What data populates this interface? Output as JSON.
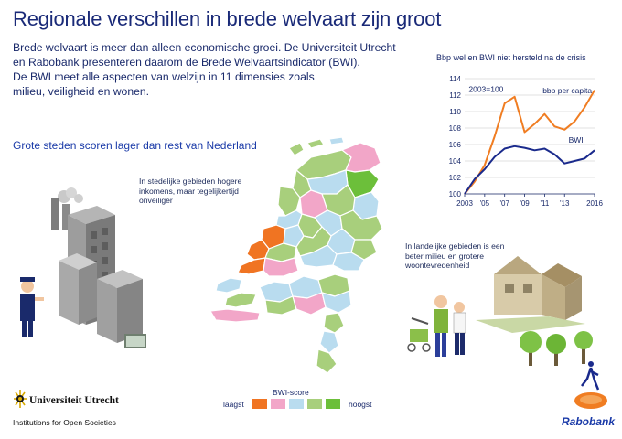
{
  "header": {
    "title": "Regionale verschillen in brede welvaart zijn groot"
  },
  "intro": {
    "lines": [
      "Brede welvaart is meer dan alleen economische groei. De Universiteit Utrecht",
      "en Rabobank presenteren daarom de Brede Welvaartsindicator (BWI).",
      "De BWI meet alle aspecten van welzijn in 11 dimensies zoals",
      "milieu, veiligheid en wonen."
    ]
  },
  "subtitle": "Grote steden scoren lager dan rest van Nederland",
  "notes": {
    "urban": "In stedelijke gebieden hogere inkomens, maar tegelijkertijd onveiliger",
    "rural": "In landelijke gebieden is een beter milieu en grotere woontevredenheid"
  },
  "legend": {
    "title": "BWI-score",
    "low_label": "laagst",
    "high_label": "hoogst",
    "colors": [
      "#f07422",
      "#f2a6c8",
      "#b9dcef",
      "#a8cf7c",
      "#6cbf3a"
    ]
  },
  "chart_data": {
    "type": "line",
    "title": "Bbp wel en BWI niet hersteld na de crisis",
    "annotation": "2003=100",
    "x_tick_labels": [
      "2003",
      "'05",
      "'07",
      "'09",
      "'11",
      "'13",
      "2016"
    ],
    "x_ticks": [
      2003,
      2005,
      2007,
      2009,
      2011,
      2013,
      2016
    ],
    "xlim": [
      2003,
      2016
    ],
    "ylim": [
      100,
      114
    ],
    "y_ticks": [
      100,
      102,
      104,
      106,
      108,
      110,
      112,
      114
    ],
    "grid": "horizontal",
    "x": [
      2003,
      2004,
      2005,
      2006,
      2007,
      2008,
      2009,
      2010,
      2011,
      2012,
      2013,
      2014,
      2015,
      2016
    ],
    "series": [
      {
        "name": "bbp per capita",
        "color": "#f07d22",
        "values": [
          100,
          101.5,
          103.5,
          107,
          111,
          111.8,
          107.5,
          108.5,
          109.7,
          108.2,
          107.8,
          108.8,
          110.5,
          112.6
        ]
      },
      {
        "name": "BWI",
        "color": "#1a2a8c",
        "values": [
          100,
          101.8,
          103,
          104.5,
          105.5,
          105.8,
          105.6,
          105.3,
          105.5,
          104.8,
          103.7,
          104,
          104.3,
          105.3
        ]
      }
    ]
  },
  "logos": {
    "uu_name": "Universiteit Utrecht",
    "uu_sub": "Institutions for Open Societies",
    "rabo_name": "Rabobank"
  }
}
